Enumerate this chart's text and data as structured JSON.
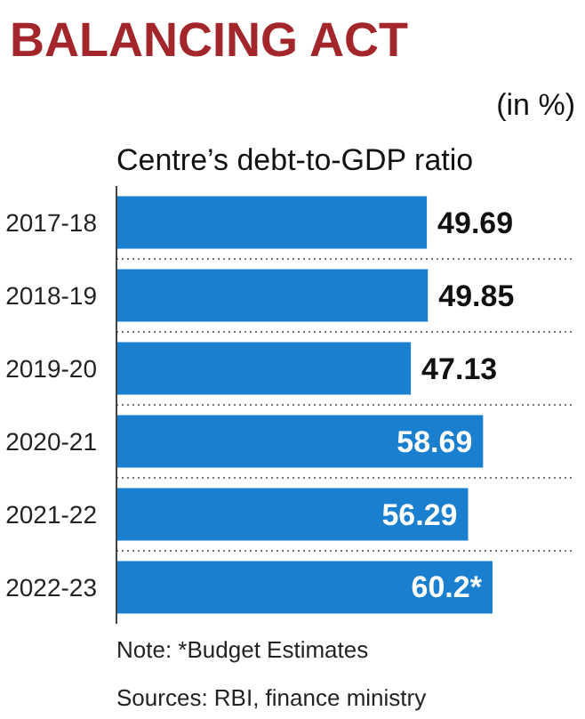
{
  "chart_data": {
    "type": "bar",
    "orientation": "horizontal",
    "title": "BALANCING ACT",
    "subtitle": "Centre’s debt-to-GDP ratio",
    "xlabel": "(in %)",
    "categories": [
      "2017-18",
      "2018-19",
      "2019-20",
      "2020-21",
      "2021-22",
      "2022-23"
    ],
    "values": [
      49.69,
      49.85,
      47.13,
      58.69,
      56.29,
      60.2
    ],
    "value_labels": [
      "49.69",
      "49.85",
      "47.13",
      "58.69",
      "56.29",
      "60.2*"
    ],
    "color": "#1a7fcf",
    "grid": "y",
    "annotations": [
      "Note: *Budget Estimates",
      "Sources: RBI, finance ministry"
    ]
  }
}
